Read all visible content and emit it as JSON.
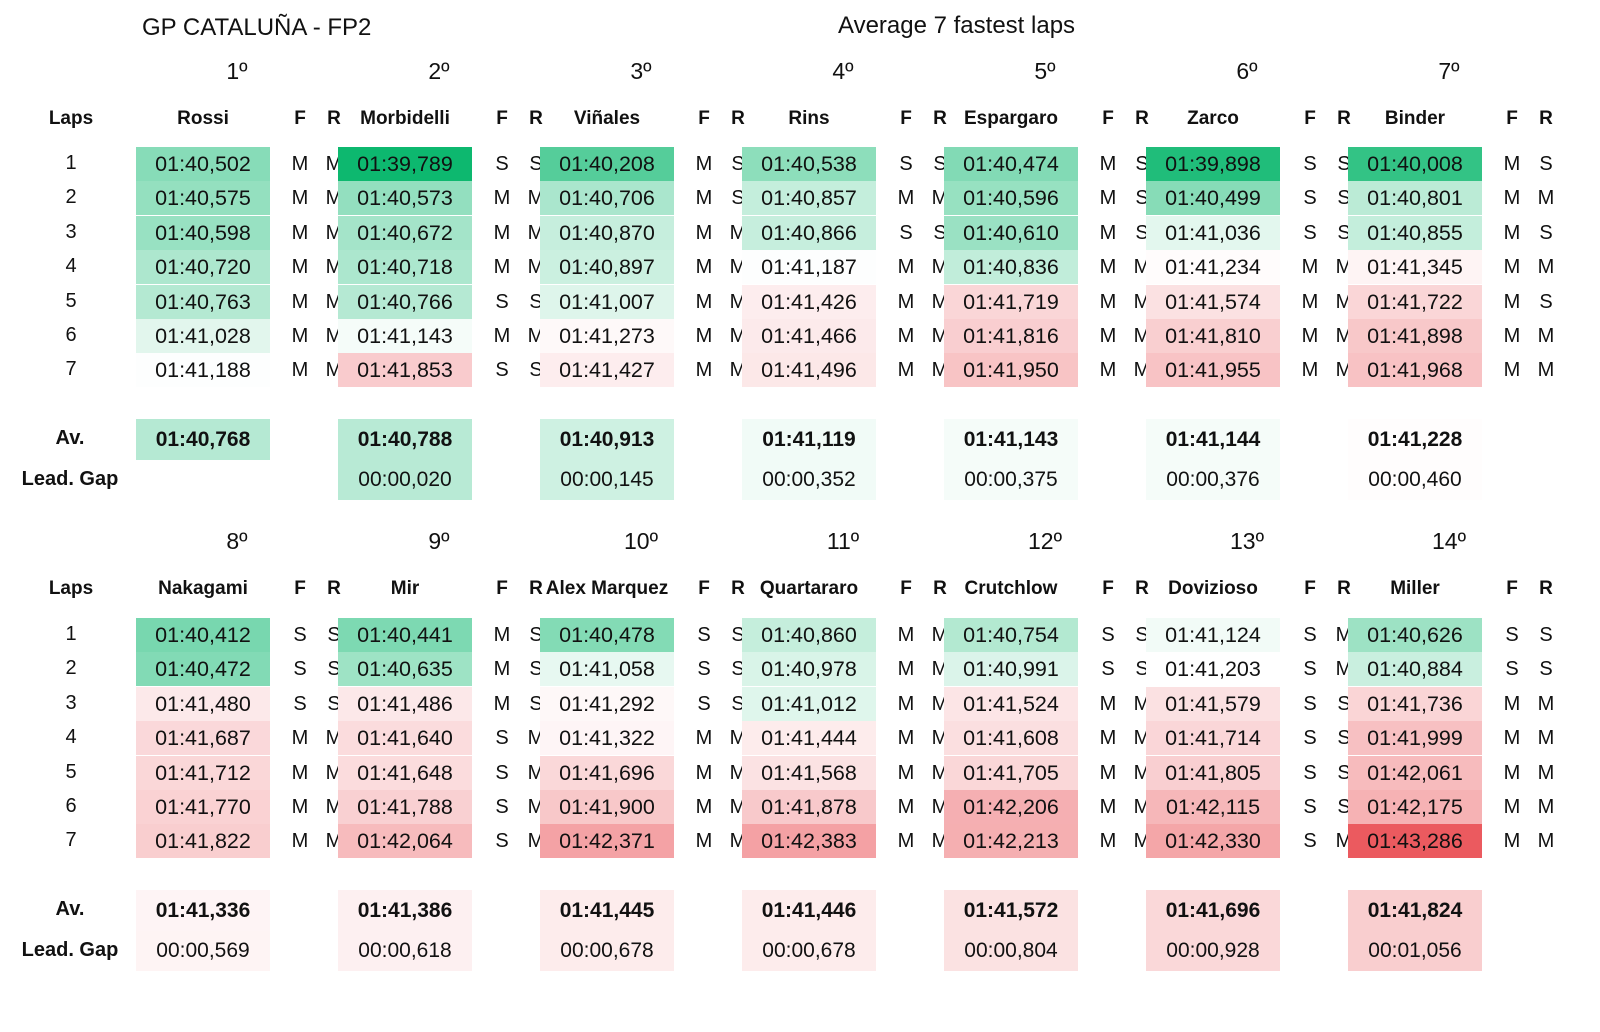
{
  "title": "GP CATALUÑA - FP2",
  "subtitle": "Average 7 fastest laps",
  "labels": {
    "laps": "Laps",
    "front": "F",
    "rear": "R",
    "average": "Av.",
    "lead_gap": "Lead. Gap"
  },
  "lap_numbers": [
    "1",
    "2",
    "3",
    "4",
    "5",
    "6",
    "7"
  ],
  "colors": {
    "best": "#0db86f",
    "mid": "#ffffff",
    "worst": "#eb5a5f"
  },
  "chart_data": {
    "type": "table",
    "title": "GP CATALUÑA - FP2",
    "subtitle": "Average 7 fastest laps",
    "color_scale": {
      "best_seconds": 99.789,
      "mid_seconds": 101.2,
      "worst_seconds": 103.286
    },
    "riders": [
      {
        "position": "1º",
        "name": "Rossi",
        "laps": [
          "01:40,502",
          "01:40,575",
          "01:40,598",
          "01:40,720",
          "01:40,763",
          "01:41,028",
          "01:41,188"
        ],
        "front": [
          "M",
          "M",
          "M",
          "M",
          "M",
          "M",
          "M"
        ],
        "rear": [
          "M",
          "M",
          "M",
          "M",
          "M",
          "M",
          "M"
        ],
        "average": "01:40,768",
        "gap": ""
      },
      {
        "position": "2º",
        "name": "Morbidelli",
        "laps": [
          "01:39,789",
          "01:40,573",
          "01:40,672",
          "01:40,718",
          "01:40,766",
          "01:41,143",
          "01:41,853"
        ],
        "front": [
          "S",
          "M",
          "M",
          "M",
          "S",
          "M",
          "S"
        ],
        "rear": [
          "S",
          "M",
          "M",
          "M",
          "S",
          "M",
          "S"
        ],
        "average": "01:40,788",
        "gap": "00:00,020"
      },
      {
        "position": "3º",
        "name": "Viñales",
        "laps": [
          "01:40,208",
          "01:40,706",
          "01:40,870",
          "01:40,897",
          "01:41,007",
          "01:41,273",
          "01:41,427"
        ],
        "front": [
          "M",
          "M",
          "M",
          "M",
          "M",
          "M",
          "M"
        ],
        "rear": [
          "S",
          "S",
          "M",
          "M",
          "M",
          "M",
          "M"
        ],
        "average": "01:40,913",
        "gap": "00:00,145"
      },
      {
        "position": "4º",
        "name": "Rins",
        "laps": [
          "01:40,538",
          "01:40,857",
          "01:40,866",
          "01:41,187",
          "01:41,426",
          "01:41,466",
          "01:41,496"
        ],
        "front": [
          "S",
          "M",
          "S",
          "M",
          "M",
          "M",
          "M"
        ],
        "rear": [
          "S",
          "M",
          "S",
          "M",
          "M",
          "M",
          "M"
        ],
        "average": "01:41,119",
        "gap": "00:00,352"
      },
      {
        "position": "5º",
        "name": "Espargaro",
        "laps": [
          "01:40,474",
          "01:40,596",
          "01:40,610",
          "01:40,836",
          "01:41,719",
          "01:41,816",
          "01:41,950"
        ],
        "front": [
          "M",
          "M",
          "M",
          "M",
          "M",
          "M",
          "M"
        ],
        "rear": [
          "S",
          "S",
          "S",
          "M",
          "M",
          "M",
          "M"
        ],
        "average": "01:41,143",
        "gap": "00:00,375"
      },
      {
        "position": "6º",
        "name": "Zarco",
        "laps": [
          "01:39,898",
          "01:40,499",
          "01:41,036",
          "01:41,234",
          "01:41,574",
          "01:41,810",
          "01:41,955"
        ],
        "front": [
          "S",
          "S",
          "S",
          "M",
          "M",
          "M",
          "M"
        ],
        "rear": [
          "S",
          "S",
          "S",
          "M",
          "M",
          "M",
          "M"
        ],
        "average": "01:41,144",
        "gap": "00:00,376"
      },
      {
        "position": "7º",
        "name": "Binder",
        "laps": [
          "01:40,008",
          "01:40,801",
          "01:40,855",
          "01:41,345",
          "01:41,722",
          "01:41,898",
          "01:41,968"
        ],
        "front": [
          "M",
          "M",
          "M",
          "M",
          "M",
          "M",
          "M"
        ],
        "rear": [
          "S",
          "M",
          "S",
          "M",
          "S",
          "M",
          "M"
        ],
        "average": "01:41,228",
        "gap": "00:00,460"
      },
      {
        "position": "8º",
        "name": "Nakagami",
        "laps": [
          "01:40,412",
          "01:40,472",
          "01:41,480",
          "01:41,687",
          "01:41,712",
          "01:41,770",
          "01:41,822"
        ],
        "front": [
          "S",
          "S",
          "S",
          "M",
          "M",
          "M",
          "M"
        ],
        "rear": [
          "S",
          "S",
          "S",
          "M",
          "M",
          "M",
          "M"
        ],
        "average": "01:41,336",
        "gap": "00:00,569"
      },
      {
        "position": "9º",
        "name": "Mir",
        "laps": [
          "01:40,441",
          "01:40,635",
          "01:41,486",
          "01:41,640",
          "01:41,648",
          "01:41,788",
          "01:42,064"
        ],
        "front": [
          "M",
          "M",
          "M",
          "S",
          "S",
          "S",
          "S"
        ],
        "rear": [
          "S",
          "S",
          "S",
          "M",
          "M",
          "M",
          "M"
        ],
        "average": "01:41,386",
        "gap": "00:00,618"
      },
      {
        "position": "10º",
        "name": "Alex Marquez",
        "laps": [
          "01:40,478",
          "01:41,058",
          "01:41,292",
          "01:41,322",
          "01:41,696",
          "01:41,900",
          "01:42,371"
        ],
        "front": [
          "S",
          "S",
          "S",
          "M",
          "M",
          "M",
          "M"
        ],
        "rear": [
          "S",
          "S",
          "S",
          "M",
          "M",
          "M",
          "M"
        ],
        "average": "01:41,445",
        "gap": "00:00,678"
      },
      {
        "position": "11º",
        "name": "Quartararo",
        "laps": [
          "01:40,860",
          "01:40,978",
          "01:41,012",
          "01:41,444",
          "01:41,568",
          "01:41,878",
          "01:42,383"
        ],
        "front": [
          "M",
          "M",
          "M",
          "M",
          "M",
          "M",
          "M"
        ],
        "rear": [
          "M",
          "M",
          "M",
          "M",
          "M",
          "M",
          "M"
        ],
        "average": "01:41,446",
        "gap": "00:00,678"
      },
      {
        "position": "12º",
        "name": "Crutchlow",
        "laps": [
          "01:40,754",
          "01:40,991",
          "01:41,524",
          "01:41,608",
          "01:41,705",
          "01:42,206",
          "01:42,213"
        ],
        "front": [
          "S",
          "S",
          "M",
          "M",
          "M",
          "M",
          "M"
        ],
        "rear": [
          "S",
          "S",
          "M",
          "M",
          "M",
          "M",
          "M"
        ],
        "average": "01:41,572",
        "gap": "00:00,804"
      },
      {
        "position": "13º",
        "name": "Dovizioso",
        "laps": [
          "01:41,124",
          "01:41,203",
          "01:41,579",
          "01:41,714",
          "01:41,805",
          "01:42,115",
          "01:42,330"
        ],
        "front": [
          "S",
          "S",
          "S",
          "S",
          "S",
          "S",
          "S"
        ],
        "rear": [
          "M",
          "M",
          "S",
          "S",
          "S",
          "S",
          "M"
        ],
        "average": "01:41,696",
        "gap": "00:00,928"
      },
      {
        "position": "14º",
        "name": "Miller",
        "laps": [
          "01:40,626",
          "01:40,884",
          "01:41,736",
          "01:41,999",
          "01:42,061",
          "01:42,175",
          "01:43,286"
        ],
        "front": [
          "S",
          "S",
          "M",
          "M",
          "M",
          "M",
          "M"
        ],
        "rear": [
          "S",
          "S",
          "M",
          "M",
          "M",
          "M",
          "M"
        ],
        "average": "01:41,824",
        "gap": "00:01,056"
      }
    ]
  }
}
